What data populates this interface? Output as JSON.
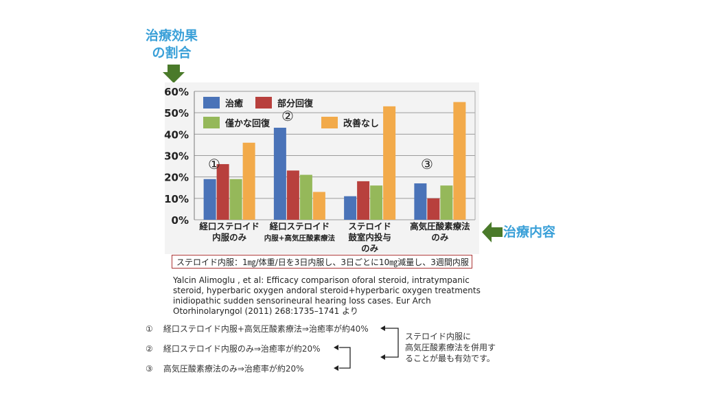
{
  "y_outer_label": {
    "line1": "治療効果",
    "line2": "の割合"
  },
  "x_outer_label": "治療内容",
  "note_box": "ステロイド内服：1㎎/体重/日を3日内服し、3日ごとに10㎎減量し、3週間内服",
  "citation": [
    "Yalcin Alimoglu , et al: Efficacy comparison oforal steroid, intratympanic",
    "steroid, hyperbaric oxygen andoral steroid+hyperbaric oxygen treatments",
    "inidiopathic sudden sensorineural hearing loss cases. Eur Arch",
    "Otorhinolaryngol (2011) 268:1735–1741 より"
  ],
  "summary": [
    {
      "num": "①",
      "text": "経口ステロイド内服+高気圧酸素療法⇒治癒率が約40%"
    },
    {
      "num": "②",
      "text": "経口ステロイド内服のみ⇒治癒率が約20%"
    },
    {
      "num": "③",
      "text": "高気圧酸素療法のみ⇒治癒率が約20%"
    }
  ],
  "side_note": [
    "ステロイド内服に",
    "高気圧酸素療法を併用す",
    "ることが最も有効です。"
  ],
  "colors": {
    "accent_blue": "#3aa0d8",
    "arrow_green": "#4a7a2a",
    "box_border": "#aa3333"
  },
  "chart_data": {
    "type": "bar",
    "title": "",
    "xlabel": "",
    "ylabel": "",
    "ylim": [
      0,
      60
    ],
    "yticks": [
      "0%",
      "10%",
      "20%",
      "30%",
      "40%",
      "50%",
      "60%"
    ],
    "categories": [
      {
        "lines": [
          "経口ステロイド",
          "内服のみ"
        ]
      },
      {
        "lines": [
          "経口ステロイド",
          "内服+高気圧酸素療法"
        ]
      },
      {
        "lines": [
          "ステロイド",
          "鼓室内投与",
          "のみ"
        ]
      },
      {
        "lines": [
          "高気圧酸素療法",
          "のみ"
        ]
      }
    ],
    "series": [
      {
        "name": "治癒",
        "color": "#4a73b8",
        "values": [
          19,
          43,
          11,
          17
        ]
      },
      {
        "name": "部分回復",
        "color": "#b8403d",
        "values": [
          26,
          23,
          18,
          10
        ]
      },
      {
        "name": "僅かな回復",
        "color": "#95b85a",
        "values": [
          19,
          21,
          16,
          16
        ]
      },
      {
        "name": "改善なし",
        "color": "#f2aa4a",
        "values": [
          36,
          13,
          53,
          55
        ]
      }
    ],
    "annotations": [
      "①",
      "②",
      "③"
    ],
    "grid": true,
    "legend": "top-left"
  }
}
